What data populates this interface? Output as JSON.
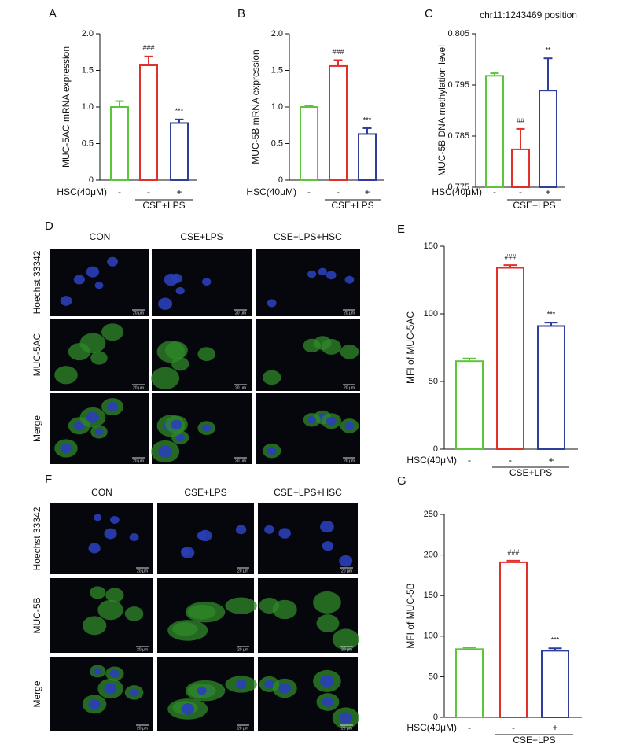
{
  "chart_data": [
    {
      "type": "bar",
      "panel": "A",
      "ylabel": "MUC-5AC mRNA expression",
      "categories": [
        "-",
        "-",
        "+"
      ],
      "row_label": "HSC(40μM)",
      "group_label": "CSE+LPS",
      "values": [
        1.0,
        1.57,
        0.78
      ],
      "errors": [
        0.08,
        0.12,
        0.05
      ],
      "annotations": [
        null,
        "###",
        "***"
      ],
      "colors": [
        "#5cc63a",
        "#e0302a",
        "#2e3e9a"
      ],
      "ylim": [
        0,
        2
      ],
      "yticks": [
        0,
        0.5,
        {
          "value": 1,
          "label": "1.0"
        },
        1.5,
        {
          "value": 2,
          "label": "2.0"
        }
      ]
    },
    {
      "type": "bar",
      "panel": "B",
      "ylabel": "MUC-5B mRNA expression",
      "categories": [
        "-",
        "-",
        "+"
      ],
      "row_label": "HSC(40μM)",
      "group_label": "CSE+LPS",
      "values": [
        1.0,
        1.56,
        0.63
      ],
      "errors": [
        0.02,
        0.08,
        0.08
      ],
      "annotations": [
        null,
        "###",
        "***"
      ],
      "colors": [
        "#5cc63a",
        "#e0302a",
        "#2e3e9a"
      ],
      "ylim": [
        0,
        2
      ],
      "yticks": [
        0,
        0.5,
        {
          "value": 1,
          "label": "1.0"
        },
        1.5,
        {
          "value": 2,
          "label": "2.0"
        }
      ]
    },
    {
      "type": "bar",
      "panel": "C",
      "title": "chr11:1243469 position",
      "ylabel": "MUC-5B DNA methylation level",
      "categories": [
        "-",
        "-",
        "+"
      ],
      "row_label": "HSC(40μM)",
      "group_label": "CSE+LPS",
      "values": [
        0.7968,
        0.7824,
        0.7939
      ],
      "errors": [
        0.0005,
        0.004,
        0.0063
      ],
      "annotations": [
        null,
        "##",
        "**"
      ],
      "colors": [
        "#5cc63a",
        "#e0302a",
        "#2e3e9a"
      ],
      "ylim": [
        0.775,
        0.805
      ],
      "yticks": [
        0.775,
        0.785,
        0.795,
        0.805
      ]
    },
    {
      "type": "bar",
      "panel": "E",
      "ylabel": "MFI of MUC-5AC",
      "categories": [
        "-",
        "-",
        "+"
      ],
      "row_label": "HSC(40μM)",
      "group_label": "CSE+LPS",
      "values": [
        65,
        134,
        91
      ],
      "errors": [
        2,
        2,
        2.5
      ],
      "annotations": [
        null,
        "###",
        "***"
      ],
      "colors": [
        "#5cc63a",
        "#e0302a",
        "#2e3e9a"
      ],
      "ylim": [
        0,
        150
      ],
      "yticks": [
        0,
        50,
        100,
        150
      ]
    },
    {
      "type": "bar",
      "panel": "G",
      "ylabel": "MFI of MUC-5B",
      "categories": [
        "-",
        "-",
        "+"
      ],
      "row_label": "HSC(40μM)",
      "group_label": "CSE+LPS",
      "values": [
        84,
        191,
        82
      ],
      "errors": [
        2,
        2,
        3
      ],
      "annotations": [
        null,
        "###",
        "***"
      ],
      "colors": [
        "#5cc63a",
        "#e0302a",
        "#2e3e9a"
      ],
      "ylim": [
        0,
        250
      ],
      "yticks": [
        0,
        50,
        100,
        150,
        200,
        250
      ]
    }
  ],
  "image_panels": [
    {
      "panel": "D",
      "columns": [
        "CON",
        "CSE+LPS",
        "CSE+LPS+HSC"
      ],
      "rows": [
        "Hoechst 33342",
        "MUC-5AC",
        "Merge"
      ],
      "scale_bar": "20 μm"
    },
    {
      "panel": "F",
      "columns": [
        "CON",
        "CSE+LPS",
        "CSE+LPS+HSC"
      ],
      "rows": [
        "Hoechst 33342",
        "MUC-5B",
        "Merge"
      ],
      "scale_bar": "20 μm"
    }
  ]
}
